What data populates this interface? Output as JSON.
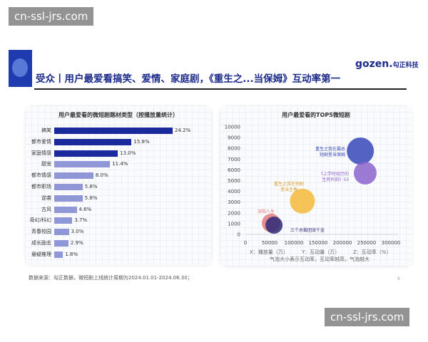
{
  "watermark": "cn-ssl-jrs.com",
  "header": {
    "title": "受众丨用户最爱看搞笑、爱情、家庭剧，《重生之...当保姆》互动率第一",
    "brand_name": "gozen.",
    "brand_cn": "勾正科技"
  },
  "bar_chart": {
    "title": "用户最爱看的微短剧题材类型（按播放量统计）",
    "colors": {
      "top": "#1a2a9c",
      "rest": "#8f97d6"
    },
    "chart_data": {
      "type": "bar",
      "orientation": "horizontal",
      "title": "用户最爱看的微短剧题材类型（按播放量统计）",
      "categories": [
        "搞笑",
        "都市爱情",
        "家庭情感",
        "甜宠",
        "都市情感",
        "都市职场",
        "逆袭",
        "古风",
        "奇幻/科幻",
        "青春校园",
        "成长励志",
        "悬疑推理"
      ],
      "values": [
        24.2,
        15.8,
        13.0,
        11.4,
        8.0,
        5.8,
        5.8,
        4.6,
        3.7,
        3.0,
        2.9,
        1.8
      ],
      "value_labels": [
        "24.2%",
        "15.8%",
        "13.0%",
        "11.4%",
        "8.0%",
        "5.8%",
        "5.8%",
        "4.6%",
        "3.7%",
        "3.0%",
        "2.9%",
        "1.8%"
      ],
      "unit": "%"
    }
  },
  "bubble_chart": {
    "title": "用户最爱看的TOP5微短剧",
    "legend_x": "X：播放量（万）",
    "legend_y": "Y：互动量（万）",
    "legend_z": "Z：互动率（%）",
    "note": "气泡大小表示互动率，互动率越高，气泡越大",
    "chart_data": {
      "type": "scatter",
      "title": "用户最爱看的TOP5微短剧",
      "xlim": [
        0,
        300000
      ],
      "ylim": [
        0,
        10000
      ],
      "x_ticks": [
        "0",
        "50000",
        "100000",
        "150000",
        "200000",
        "250000",
        "300000"
      ],
      "y_ticks": [
        "0",
        "1000",
        "2000",
        "3000",
        "4000",
        "5000",
        "6000",
        "7000",
        "8000",
        "9000",
        "10000"
      ],
      "series": [
        {
          "name": "重生之我在霸总短剧里当保姆",
          "x": 237000,
          "y": 7750,
          "color": "#3546b8"
        },
        {
          "name": "《上学时经历的生死时刻》S3",
          "x": 247000,
          "y": 5700,
          "color": "#8a64cc"
        },
        {
          "name": "重生之我在短剧里当主角",
          "x": 117600,
          "y": 3100,
          "color": "#f5b93a"
        },
        {
          "name": "深陷人生",
          "x": 53000,
          "y": 1060,
          "color": "#e57a7a"
        },
        {
          "name": "三个总裁团宠千金",
          "x": 59000,
          "y": 860,
          "color": "#2a2a78"
        }
      ]
    }
  },
  "footer": {
    "source": "数据来源：勾正数据，微短剧上线统计周期为2024.01.01-2024.06.30；",
    "page": "8"
  }
}
